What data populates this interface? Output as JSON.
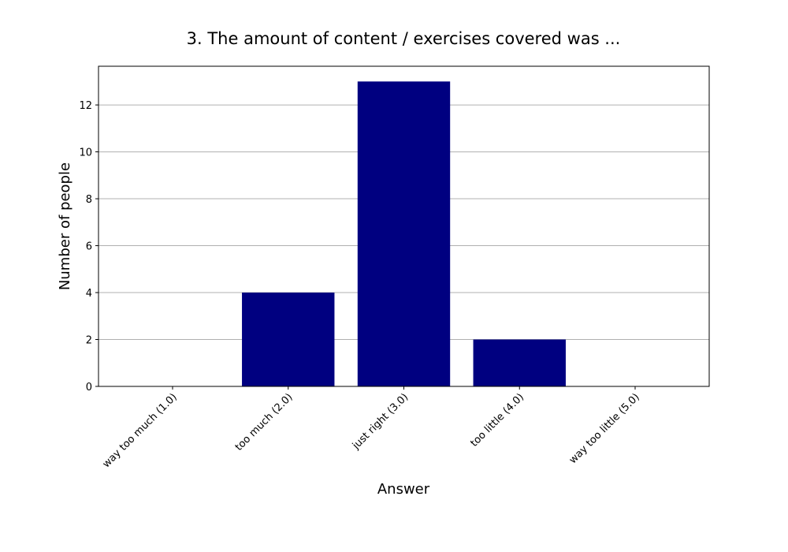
{
  "chart_data": {
    "type": "bar",
    "title": "3. The amount of content / exercises covered was ...",
    "x_label": "Answer",
    "y_label": "Number of people",
    "categories": [
      "way too much (1.0)",
      "too much (2.0)",
      "just right (3.0)",
      "too little (4.0)",
      "way too little (5.0)"
    ],
    "values": [
      0,
      4,
      13,
      2,
      0
    ],
    "color": "#000080",
    "ylim": [
      0,
      13.65
    ],
    "yticks": [
      0,
      2,
      4,
      6,
      8,
      10,
      12
    ],
    "grid": true
  }
}
